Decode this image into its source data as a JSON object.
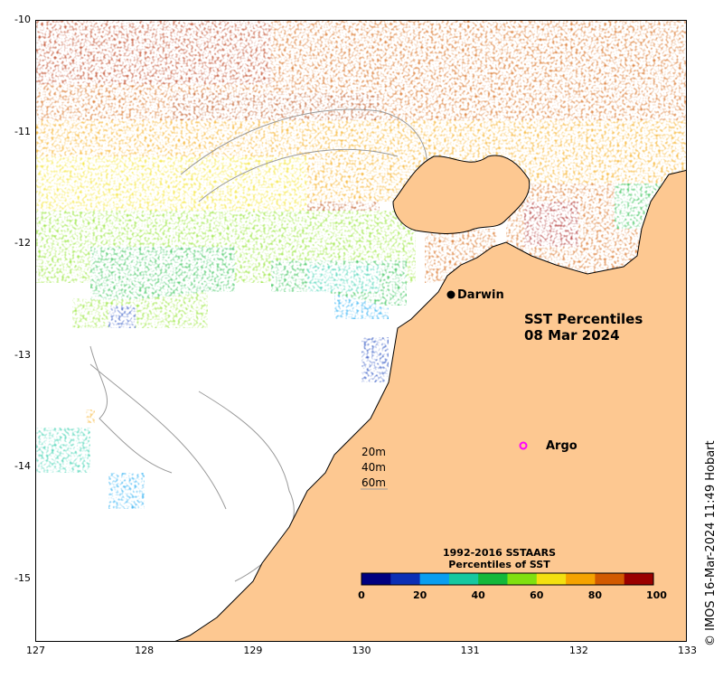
{
  "title": {
    "line1": "SST Percentiles",
    "line2": "08 Mar 2024"
  },
  "credit": "© IMOS 16-Mar-2024 11:49 Hobart",
  "places": {
    "darwin": "Darwin",
    "argo": "Argo"
  },
  "depth_legend": [
    "20m",
    "40m",
    "60m"
  ],
  "colorbar": {
    "title1": "1992-2016 SSTAARS",
    "title2": "Percentiles of SST",
    "ticks": [
      "0",
      "20",
      "40",
      "60",
      "80",
      "100"
    ],
    "colors": [
      "#000080",
      "#0b2fb5",
      "#0a9ef0",
      "#15c8a0",
      "#13b83a",
      "#80e010",
      "#f3e010",
      "#f5a300",
      "#d25a00",
      "#9a0000"
    ]
  },
  "axes": {
    "lon_ticks": [
      "127",
      "128",
      "129",
      "130",
      "131",
      "132",
      "133"
    ],
    "lat_ticks": [
      "-10",
      "-11",
      "-12",
      "-13",
      "-14",
      "-15"
    ]
  },
  "colors": {
    "land": "#fdc891",
    "ocean_nodata": "#ffffff",
    "argo_marker": "#ff00ff"
  }
}
